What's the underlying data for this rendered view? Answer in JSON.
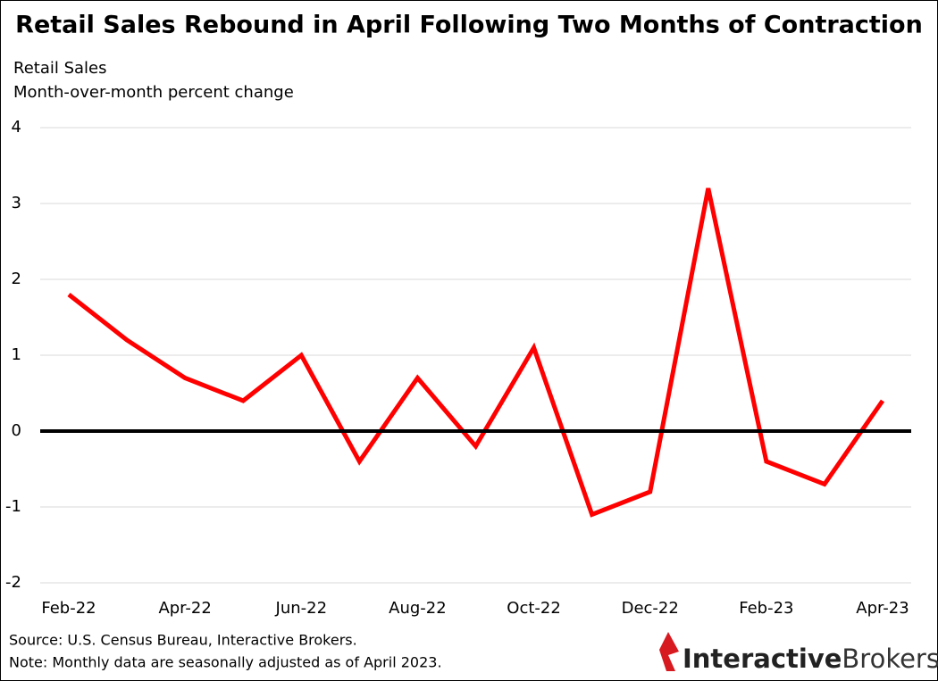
{
  "chart_data": {
    "type": "line",
    "title": "Retail Sales Rebound in April Following Two Months of Contraction",
    "subtitle": [
      "Retail Sales",
      "Month-over-month percent change"
    ],
    "categories": [
      "Feb-22",
      null,
      "Apr-22",
      null,
      "Jun-22",
      null,
      "Aug-22",
      null,
      "Oct-22",
      null,
      "Dec-22",
      null,
      "Feb-23",
      null,
      "Apr-23"
    ],
    "series": [
      {
        "name": "Retail Sales",
        "color": "#ff0000",
        "values": [
          1.8,
          1.2,
          0.7,
          0.4,
          1.0,
          -0.4,
          0.7,
          -0.2,
          1.1,
          -1.1,
          -0.8,
          3.2,
          -0.4,
          -0.7,
          0.4
        ]
      }
    ],
    "ylim": [
      -2,
      4
    ],
    "yticks": [
      -2,
      -1,
      0,
      1,
      2,
      3,
      4
    ],
    "grid": true,
    "zero_line": true,
    "notes": [
      "Source: U.S. Census Bureau, Interactive Brokers.",
      "Note: Monthly data are seasonally adjusted as of April 2023."
    ],
    "logo": [
      "Interactive",
      "Brokers"
    ]
  }
}
